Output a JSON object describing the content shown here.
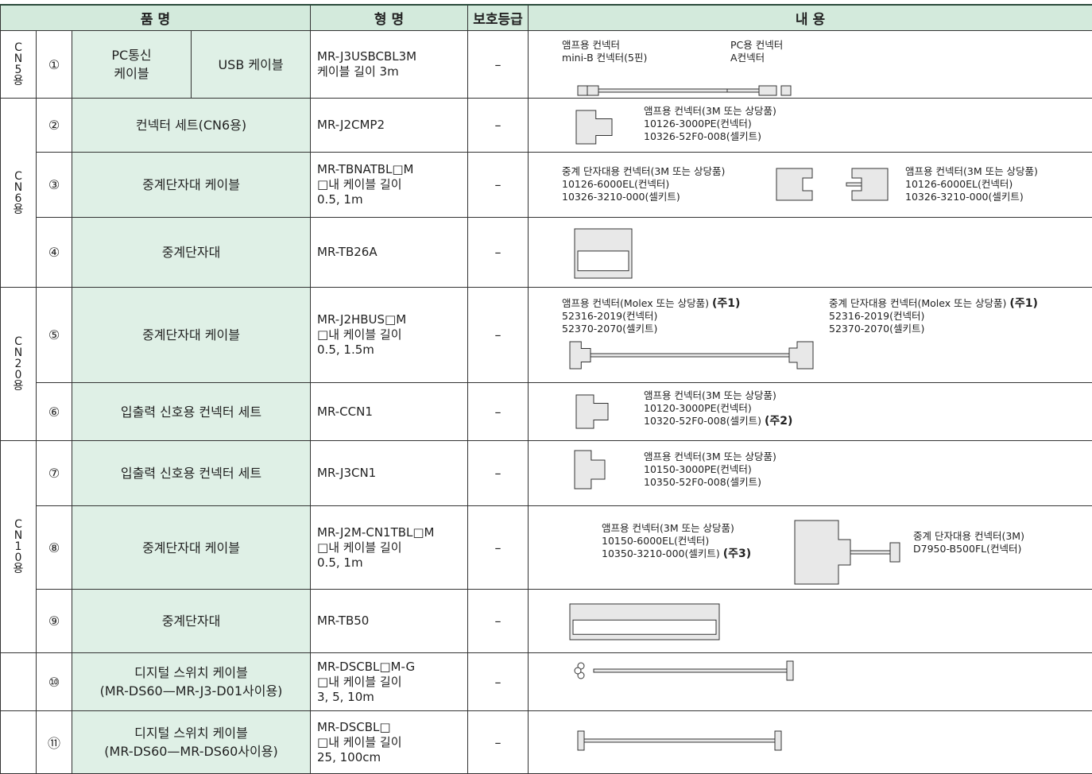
{
  "header": [
    "품 명",
    "형 명",
    "보호등급",
    "내 용"
  ],
  "groups": [
    "CN5용",
    "CN6용",
    "CN20용",
    "CN10용"
  ],
  "rows": [
    {
      "no": "①",
      "name": [
        "PC통신",
        "케이블"
      ],
      "name2": "USB 케이블",
      "model": [
        "MR-J3USBCBL3M",
        "케이블 길이 3m"
      ],
      "grade": "–",
      "content": [
        [
          "앰프용 컨넥터",
          "mini-B 컨넥터(5핀)"
        ],
        [
          "PC용 컨넥터",
          "A컨넥터"
        ]
      ]
    },
    {
      "no": "②",
      "name": [
        "컨넥터 세트(CN6용)"
      ],
      "model": [
        "MR-J2CMP2"
      ],
      "grade": "–",
      "content": [
        [
          "앰프용 컨넥터(3M 또는 상당품)",
          "10126-3000PE(컨넥터)",
          "10326-52F0-008(셀키트)"
        ]
      ]
    },
    {
      "no": "③",
      "name": [
        "중계단자대 케이블"
      ],
      "model": [
        "MR-TBNATBL□M",
        "□내 케이블 길이",
        "0.5, 1m"
      ],
      "grade": "–",
      "content": [
        [
          "중계 단자대용 컨넥터(3M 또는 상당품)",
          "10126-6000EL(컨넥터)",
          "10326-3210-000(셀키트)"
        ],
        [
          "앰프용 컨넥터(3M 또는 상당품)",
          "10126-6000EL(컨넥터)",
          "10326-3210-000(셀키트)"
        ]
      ]
    },
    {
      "no": "④",
      "name": [
        "중계단자대"
      ],
      "model": [
        "MR-TB26A"
      ],
      "grade": "–",
      "content": []
    },
    {
      "no": "⑤",
      "name": [
        "중계단자대 케이블"
      ],
      "model": [
        "MR-J2HBUS□M",
        "□내 케이블 길이",
        "0.5, 1.5m"
      ],
      "grade": "–",
      "content": [
        [
          {
            "text": "앰프용 컨넥터(Molex 또는 상당품)",
            "note": "(주1)"
          },
          "52316-2019(컨넥터)",
          "52370-2070(셀키트)"
        ],
        [
          {
            "text": "중계 단자대용 컨넥터(Molex 또는 상당품)",
            "note": "(주1)"
          },
          "52316-2019(컨넥터)",
          "52370-2070(셀키트)"
        ]
      ]
    },
    {
      "no": "⑥",
      "name": [
        "입출력 신호용 컨넥터 세트"
      ],
      "model": [
        "MR-CCN1"
      ],
      "grade": "–",
      "content": [
        [
          "앰프용 컨넥터(3M 또는 상당품)",
          "10120-3000PE(컨넥터)",
          {
            "text": "10320-52F0-008(셀키트)",
            "note": "(주2)"
          }
        ]
      ]
    },
    {
      "no": "⑦",
      "name": [
        "입출력 신호용 컨넥터 세트"
      ],
      "model": [
        "MR-J3CN1"
      ],
      "grade": "–",
      "content": [
        [
          "앰프용 컨넥터(3M 또는 상당품)",
          "10150-3000PE(컨넥터)",
          "10350-52F0-008(셀키트)"
        ]
      ]
    },
    {
      "no": "⑧",
      "name": [
        "중계단자대 케이블"
      ],
      "model": [
        "MR-J2M-CN1TBL□M",
        "□내 케이블 길이",
        "0.5, 1m"
      ],
      "grade": "–",
      "content": [
        [
          "앰프용 컨넥터(3M 또는 상당품)",
          "10150-6000EL(컨넥터)",
          {
            "text": "10350-3210-000(셀키트)",
            "note": "(주3)"
          }
        ],
        [
          "중계 단자대용  컨넥터(3M)",
          "D7950-B500FL(컨넥터)"
        ]
      ]
    },
    {
      "no": "⑨",
      "name": [
        "중계단자대"
      ],
      "model": [
        "MR-TB50"
      ],
      "grade": "–",
      "content": []
    },
    {
      "no": "⑩",
      "name": [
        "디지털 스위치 케이블",
        "(MR-DS60—MR-J3-D01사이용)"
      ],
      "model": [
        "MR-DSCBL□M-G",
        "□내 케이블 길이",
        "3, 5, 10m"
      ],
      "grade": "–",
      "content": []
    },
    {
      "no": "⑪",
      "name": [
        "디지털 스위치 케이블",
        "(MR-DS60—MR-DS60사이용)"
      ],
      "model": [
        "MR-DSCBL□",
        "□내 케이블 길이",
        "25, 100cm"
      ],
      "grade": "–",
      "content": []
    }
  ]
}
